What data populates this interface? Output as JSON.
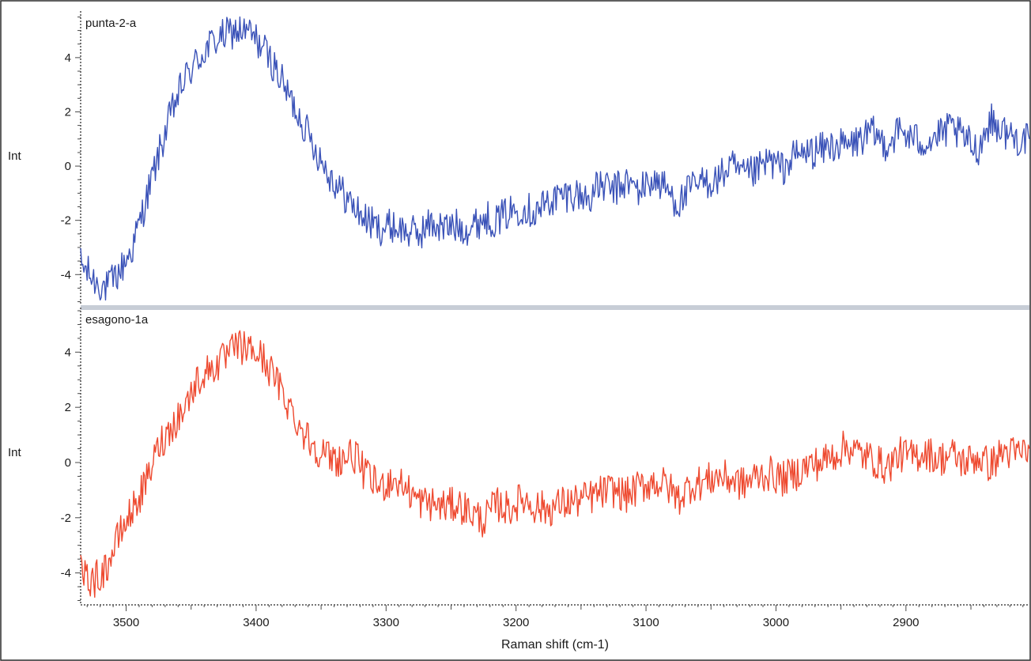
{
  "chart_data": [
    {
      "type": "line",
      "title": "punta-2-a",
      "ylabel": "Int",
      "xlabel": "",
      "xlim": [
        3535,
        2805
      ],
      "ylim": [
        -5.1,
        5.6
      ],
      "y_ticks": [
        -4,
        -2,
        0,
        2,
        4
      ],
      "x_ticks": [],
      "grid": false,
      "color": "#3a52b8",
      "series": [
        {
          "x": [
            3535,
            3525,
            3515,
            3505,
            3495,
            3485,
            3475,
            3465,
            3455,
            3445,
            3435,
            3425,
            3415,
            3405,
            3395,
            3385,
            3375,
            3365,
            3355,
            3345,
            3335,
            3325,
            3315,
            3305,
            3295,
            3285,
            3275,
            3265,
            3255,
            3245,
            3235,
            3225,
            3215,
            3205,
            3195,
            3185,
            3175,
            3165,
            3155,
            3145,
            3135,
            3125,
            3115,
            3105,
            3095,
            3085,
            3075,
            3065,
            3055,
            3045,
            3035,
            3025,
            3015,
            3005,
            2995,
            2985,
            2975,
            2965,
            2955,
            2945,
            2935,
            2925,
            2915,
            2905,
            2895,
            2885,
            2875,
            2865,
            2855,
            2845,
            2835,
            2825,
            2815,
            2805
          ],
          "values": [
            -3.6,
            -4.2,
            -4.5,
            -3.9,
            -3.0,
            -1.3,
            0.4,
            2.0,
            3.2,
            3.9,
            4.5,
            4.8,
            5.0,
            4.9,
            4.4,
            3.6,
            2.6,
            1.7,
            0.7,
            -0.2,
            -0.9,
            -1.5,
            -2.0,
            -2.3,
            -2.2,
            -2.4,
            -2.5,
            -2.1,
            -2.3,
            -2.2,
            -2.3,
            -1.9,
            -2.0,
            -1.7,
            -1.5,
            -1.7,
            -1.3,
            -1.1,
            -1.0,
            -1.2,
            -0.7,
            -0.9,
            -0.6,
            -0.9,
            -0.5,
            -0.8,
            -1.4,
            -0.8,
            -0.6,
            -0.5,
            0.0,
            -0.4,
            -0.2,
            0.2,
            -0.1,
            0.4,
            0.5,
            0.6,
            0.8,
            0.7,
            1.0,
            1.2,
            0.8,
            1.3,
            1.0,
            0.9,
            1.1,
            1.4,
            1.0,
            0.6,
            1.7,
            1.3,
            1.0,
            1.0
          ]
        }
      ]
    },
    {
      "type": "line",
      "title": "esagono-1a",
      "ylabel": "Int",
      "xlabel": "Raman shift (cm-1)",
      "xlim": [
        3535,
        2805
      ],
      "ylim": [
        -5.1,
        5.5
      ],
      "y_ticks": [
        -4,
        -2,
        0,
        2,
        4
      ],
      "x_ticks": [
        3500,
        3400,
        3300,
        3200,
        3100,
        3000,
        2900
      ],
      "grid": false,
      "color": "#ee4a30",
      "series": [
        {
          "x": [
            3535,
            3525,
            3515,
            3505,
            3495,
            3485,
            3475,
            3465,
            3455,
            3445,
            3435,
            3425,
            3415,
            3405,
            3395,
            3385,
            3375,
            3365,
            3355,
            3345,
            3335,
            3325,
            3315,
            3305,
            3295,
            3285,
            3275,
            3265,
            3255,
            3245,
            3235,
            3225,
            3215,
            3205,
            3195,
            3185,
            3175,
            3165,
            3155,
            3145,
            3135,
            3125,
            3115,
            3105,
            3095,
            3085,
            3075,
            3065,
            3055,
            3045,
            3035,
            3025,
            3015,
            3005,
            2995,
            2985,
            2975,
            2965,
            2955,
            2945,
            2935,
            2925,
            2915,
            2905,
            2895,
            2885,
            2875,
            2865,
            2855,
            2845,
            2835,
            2825,
            2815,
            2805
          ],
          "values": [
            -4.0,
            -4.3,
            -3.8,
            -2.6,
            -1.7,
            -0.8,
            0.6,
            1.3,
            2.0,
            3.0,
            3.4,
            3.7,
            4.2,
            4.1,
            3.8,
            3.0,
            2.1,
            1.2,
            0.6,
            0.2,
            0.1,
            0.3,
            -0.5,
            -0.9,
            -0.6,
            -0.9,
            -1.4,
            -1.5,
            -1.6,
            -1.5,
            -1.8,
            -2.1,
            -1.5,
            -1.7,
            -1.3,
            -1.6,
            -1.7,
            -1.5,
            -1.4,
            -1.3,
            -1.1,
            -1.0,
            -1.2,
            -0.9,
            -0.7,
            -0.8,
            -1.3,
            -0.8,
            -0.7,
            -0.5,
            -0.6,
            -0.8,
            -0.5,
            -0.4,
            -0.6,
            -0.4,
            -0.1,
            0.0,
            0.3,
            0.6,
            0.3,
            0.1,
            -0.2,
            0.3,
            0.2,
            0.4,
            0.1,
            0.3,
            0.0,
            0.2,
            -0.1,
            0.4,
            0.3,
            0.5
          ]
        }
      ]
    }
  ],
  "colors": {
    "frame": "#2b2b2b",
    "axis": "#4a4a4a",
    "divider": "#c7cdd6"
  }
}
